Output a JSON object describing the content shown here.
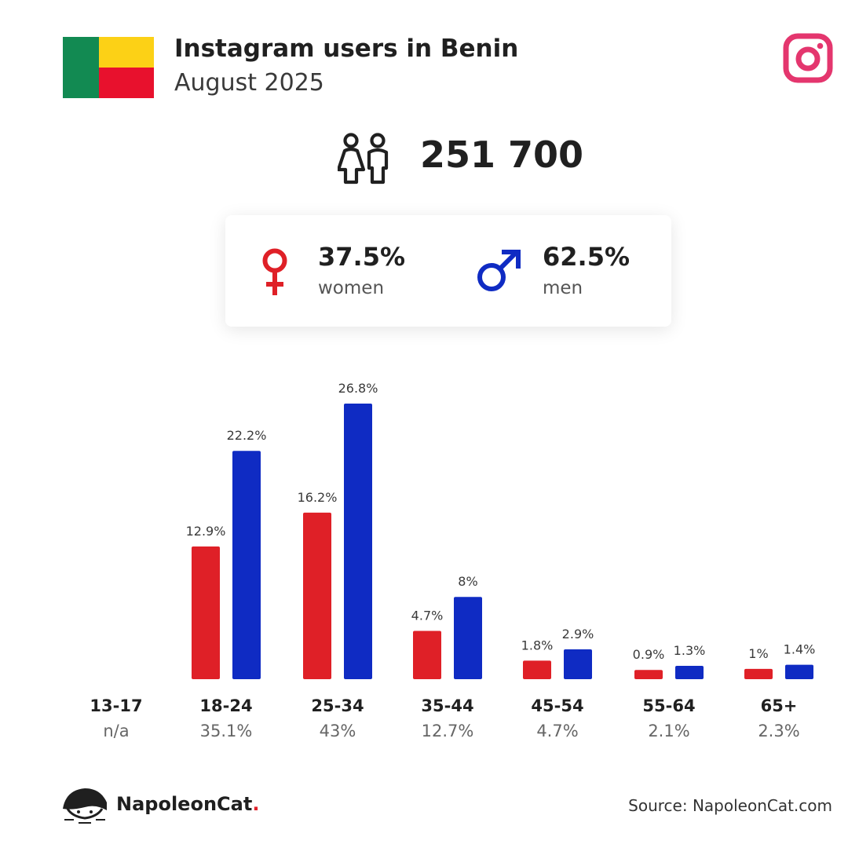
{
  "header": {
    "title": "Instagram users in Benin",
    "subtitle": "August 2025"
  },
  "colors": {
    "women": "#df2027",
    "men": "#0f2bc3",
    "instagram": "#e4366e"
  },
  "icons": {
    "flag": "benin-flag-icon",
    "brand": "instagram-logo-icon",
    "total": "people-icon",
    "women": "female-symbol-icon",
    "men": "male-symbol-icon",
    "footer": "napoleoncat-logo-icon"
  },
  "total": "251 700",
  "gender": {
    "women_pct": "37.5%",
    "women_label": "women",
    "men_pct": "62.5%",
    "men_label": "men"
  },
  "chart_data": {
    "type": "bar",
    "categories": [
      "13-17",
      "18-24",
      "25-34",
      "35-44",
      "45-54",
      "55-64",
      "65+"
    ],
    "category_totals": [
      "n/a",
      "35.1%",
      "43%",
      "12.7%",
      "4.7%",
      "2.1%",
      "2.3%"
    ],
    "series": [
      {
        "values": [
          null,
          12.9,
          16.2,
          4.7,
          1.8,
          0.9,
          1
        ],
        "labels": [
          "",
          "12.9%",
          "16.2%",
          "4.7%",
          "1.8%",
          "0.9%",
          "1%"
        ]
      },
      {
        "values": [
          null,
          22.2,
          26.8,
          8,
          2.9,
          1.3,
          1.4
        ],
        "labels": [
          "",
          "22.2%",
          "26.8%",
          "8%",
          "2.9%",
          "1.3%",
          "1.4%"
        ]
      }
    ],
    "ylim": [
      0,
      26.8
    ],
    "grid": false,
    "legend": "none"
  },
  "footer": {
    "brand": "NapoleonCat",
    "brand_dot": ".",
    "source": "Source: NapoleonCat.com"
  }
}
